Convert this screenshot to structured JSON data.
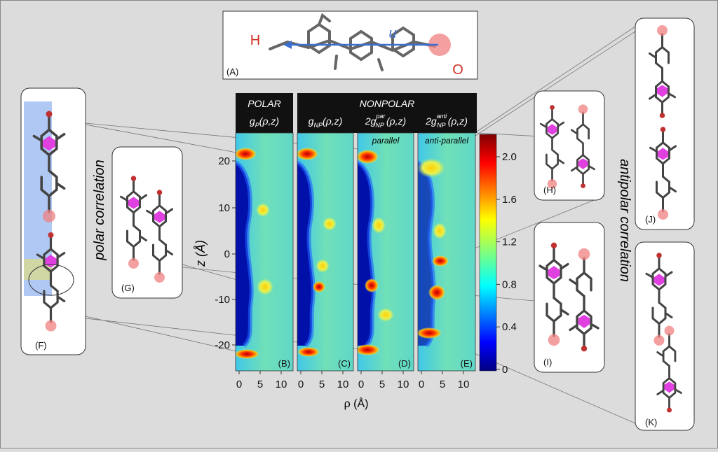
{
  "panel_a": {
    "h": "H",
    "u": "u",
    "o": "O",
    "label": "(A)"
  },
  "header": {
    "polar": "POLAR",
    "nonpolar": "NONPOLAR",
    "columns": [
      {
        "base": "g",
        "sub": "P",
        "args": "(ρ,z)"
      },
      {
        "base": "g",
        "sub": "NP",
        "args": "(ρ,z)"
      },
      {
        "base": "2g",
        "sup": "par",
        "sub": "NP",
        "args": "(ρ,z)"
      },
      {
        "base": "2g",
        "sup": "anti",
        "sub": "NP",
        "args": "(ρ,z)"
      }
    ]
  },
  "heatmaps": [
    {
      "label": "(B)"
    },
    {
      "label": "(C)"
    },
    {
      "label": "(D)",
      "note": "parallel"
    },
    {
      "label": "(E)",
      "note": "anti-parallel"
    }
  ],
  "y_axis": {
    "label": "z (Å)",
    "ticks": [
      "20",
      "10",
      "0",
      "-10",
      "-20"
    ]
  },
  "x_axis": {
    "label": "ρ (Å)",
    "ticks": [
      "0",
      "5",
      "10"
    ]
  },
  "colorbar": {
    "ticks": [
      "0",
      "0.4",
      "0.8",
      "1.2",
      "1.6",
      "2.0"
    ]
  },
  "side_panels": {
    "f": "(F)",
    "g": "(G)",
    "h": "(H)",
    "i": "(I)",
    "j": "(J)",
    "k": "(K)"
  },
  "polar_label": "polar correlation",
  "antipolar_label": "antipolar correlation"
}
